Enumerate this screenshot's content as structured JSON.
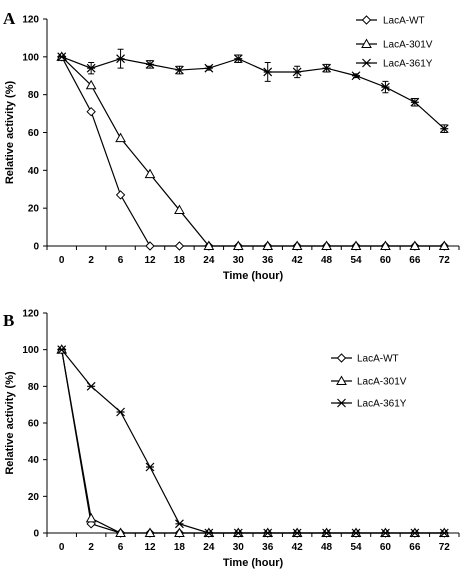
{
  "chart_data": [
    {
      "type": "line",
      "panel_label": "A",
      "xlabel": "Time (hour)",
      "ylabel": "Relative activity (%)",
      "categories": [
        "0",
        "2",
        "6",
        "12",
        "18",
        "24",
        "30",
        "36",
        "42",
        "48",
        "54",
        "60",
        "66",
        "72"
      ],
      "ylim": [
        0,
        120
      ],
      "yticks": [
        "0",
        "20",
        "40",
        "60",
        "80",
        "100",
        "120"
      ],
      "legend_position": "top-right",
      "series": [
        {
          "name": "LacA-WT",
          "marker": "diamond",
          "values": [
            100,
            71,
            27,
            0,
            0,
            0,
            0,
            0,
            0,
            0,
            0,
            0,
            0,
            0
          ]
        },
        {
          "name": "LacA-301V",
          "marker": "triangle",
          "values": [
            100,
            85,
            57,
            38,
            19,
            0,
            0,
            0,
            0,
            0,
            0,
            0,
            0,
            0
          ]
        },
        {
          "name": "LacA-361Y",
          "marker": "star",
          "values": [
            100,
            94,
            99,
            96,
            93,
            94,
            99,
            92,
            92,
            94,
            90,
            84,
            76,
            62
          ],
          "errors": [
            0,
            3,
            5,
            2,
            2,
            1,
            2,
            5,
            3,
            2,
            1,
            3,
            2,
            2
          ]
        }
      ]
    },
    {
      "type": "line",
      "panel_label": "B",
      "xlabel": "Time (hour)",
      "ylabel": "Relative activity (%)",
      "categories": [
        "0",
        "2",
        "6",
        "12",
        "18",
        "24",
        "30",
        "36",
        "42",
        "48",
        "54",
        "60",
        "66",
        "72"
      ],
      "ylim": [
        0,
        120
      ],
      "yticks": [
        "0",
        "20",
        "40",
        "60",
        "80",
        "100",
        "120"
      ],
      "legend_position": "top-right",
      "series": [
        {
          "name": "LacA-WT",
          "marker": "diamond",
          "values": [
            100,
            5,
            0,
            0,
            0,
            0,
            0,
            0,
            0,
            0,
            0,
            0,
            0,
            0
          ]
        },
        {
          "name": "LacA-301V",
          "marker": "triangle",
          "values": [
            100,
            8,
            0,
            0,
            0,
            0,
            0,
            0,
            0,
            0,
            0,
            0,
            0,
            0
          ]
        },
        {
          "name": "LacA-361Y",
          "marker": "star",
          "values": [
            100,
            80,
            66,
            36,
            5,
            0,
            0,
            0,
            0,
            0,
            0,
            0,
            0,
            0
          ]
        }
      ]
    }
  ]
}
